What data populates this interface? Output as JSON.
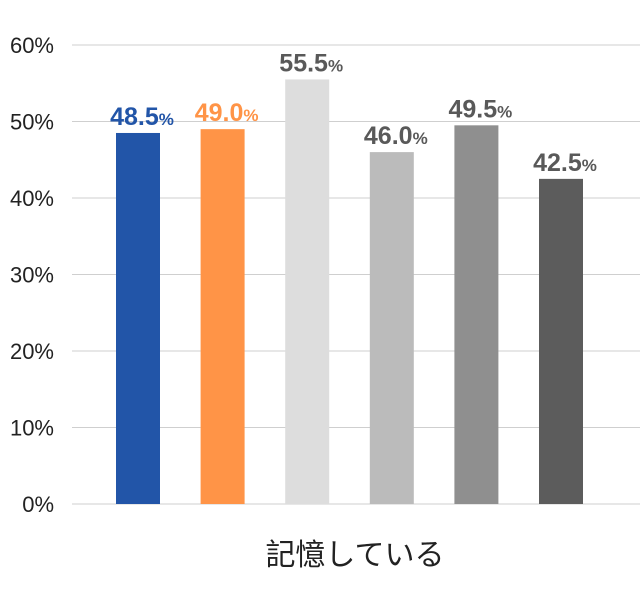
{
  "chart_data": {
    "type": "bar",
    "categories": [
      "",
      "",
      "",
      "",
      "",
      ""
    ],
    "values": [
      48.5,
      49.0,
      55.5,
      46.0,
      49.5,
      42.5
    ],
    "colors": [
      "#2255A8",
      "#FF9447",
      "#DDDDDD",
      "#BBBBBB",
      "#8F8F8F",
      "#5C5C5C"
    ],
    "label_colors": [
      "#2255A8",
      "#FF9447",
      "#595959",
      "#595959",
      "#595959",
      "#595959"
    ],
    "value_labels": [
      "48.5",
      "49.0",
      "55.5",
      "46.0",
      "49.5",
      "42.5"
    ],
    "value_unit": "%",
    "yticks": [
      "0%",
      "10%",
      "20%",
      "30%",
      "40%",
      "50%",
      "60%"
    ],
    "ylim": [
      0,
      60
    ],
    "grid": true,
    "xlabel": "記憶している",
    "title": ""
  }
}
